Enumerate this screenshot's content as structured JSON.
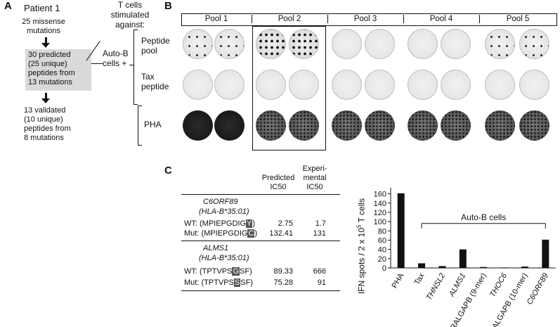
{
  "panel_a": {
    "letter": "A",
    "title": "Patient 1",
    "step1": [
      "25 missense",
      "mutations"
    ],
    "step2": [
      "30 predicted",
      "(25 unique)",
      "peptides from",
      "13 mutations"
    ],
    "step3": [
      "13 validated",
      "(10 unique)",
      "peptides from",
      "8  mutations"
    ],
    "colors": {
      "box": "#d9d9d9"
    }
  },
  "stim": {
    "header": [
      "T cells",
      "stimulated",
      "against:"
    ],
    "autob": [
      "Auto-B",
      "cells +"
    ],
    "row1": [
      "Peptide",
      "pool"
    ],
    "row2": [
      "Tax",
      "peptide"
    ],
    "row3": "PHA"
  },
  "panel_b": {
    "letter": "B",
    "pools": [
      "Pool 1",
      "Pool 2",
      "Pool 3",
      "Pool 4",
      "Pool 5"
    ]
  },
  "panel_c": {
    "letter": "C",
    "table": {
      "col1": [
        "Predicted",
        "IC50"
      ],
      "col2": [
        "Experi-",
        "mental",
        "IC50"
      ],
      "group1": {
        "gene": "C6ORF89",
        "hla": "(HLA-B*35:01)",
        "rows": [
          {
            "label": "WT:",
            "pre": "(MPIEPGDIG",
            "mut": "Y",
            "post": ")",
            "pred": "2.75",
            "exp": "1.7"
          },
          {
            "label": "Mut:",
            "pre": "(MPIEPGDIG",
            "mut": "C",
            "post": ")",
            "pred": "132.41",
            "exp": "131"
          }
        ]
      },
      "group2": {
        "gene": "ALMS1",
        "hla": "(HLA-B*35:01)",
        "rows": [
          {
            "label": "WT:",
            "pre": "(TPTVPS",
            "mut": "G",
            "post": "SF)",
            "pred": "89.33",
            "exp": "666"
          },
          {
            "label": "Mut:",
            "pre": "(TPTVPS",
            "mut": "S",
            "post": "SF)",
            "pred": "75.28",
            "exp": "91"
          }
        ]
      }
    }
  },
  "chart_data": {
    "type": "bar",
    "categories": [
      "PHA",
      "Tax",
      "THNSL2",
      "ALMS1",
      "RALGAPB (9-mer)",
      "THOC6",
      "RALGAPB (10-mer)",
      "C6ORF89"
    ],
    "italic": [
      false,
      false,
      true,
      true,
      false,
      true,
      false,
      true
    ],
    "values": [
      161,
      10,
      4,
      40,
      2,
      1,
      3,
      61
    ],
    "ylabel": "IFN spots / 2 x 10",
    "ylabel_sup": "5",
    "ylabel_tail": " T cells",
    "ylim": [
      0,
      170
    ],
    "yticks": [
      0,
      20,
      40,
      60,
      80,
      100,
      120,
      140,
      160
    ],
    "bracket_label": "Auto-B cells",
    "colors": {
      "bar": "#111111"
    }
  }
}
